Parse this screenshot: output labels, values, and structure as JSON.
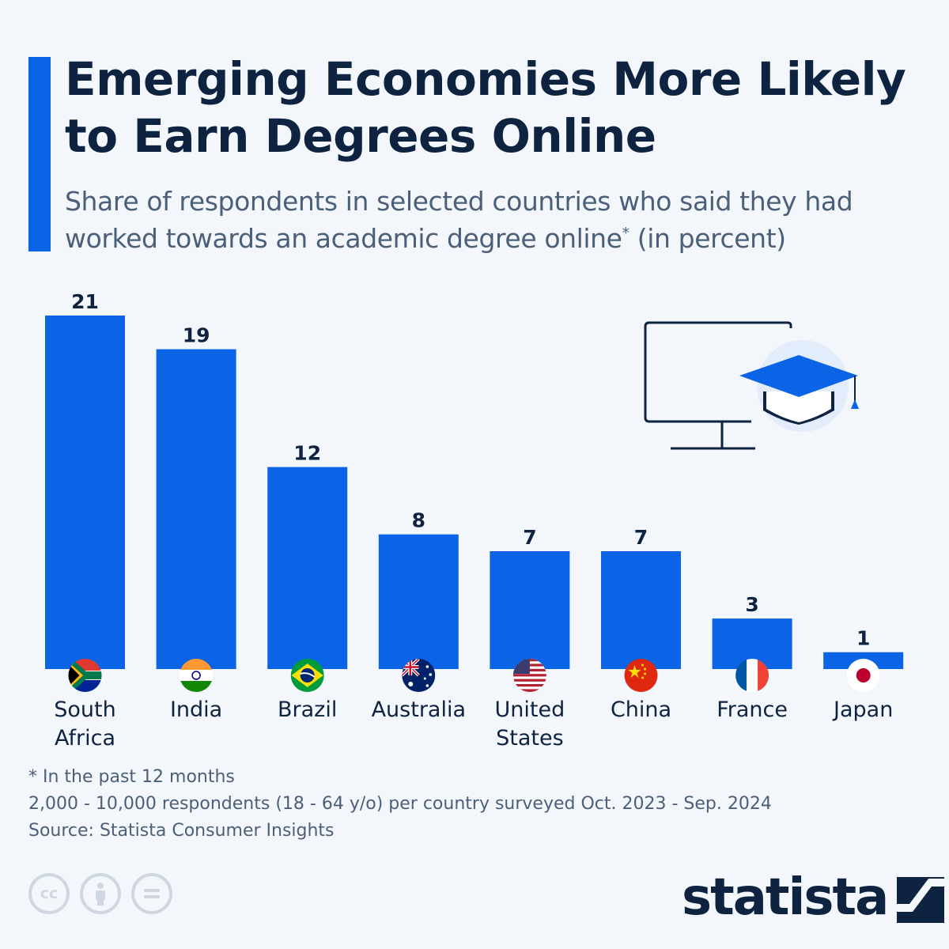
{
  "header": {
    "title": "Emerging Economies More Likely to Earn Degrees Online",
    "subtitle_text": "Share of respondents in selected countries who said they had worked towards an academic degree online",
    "subtitle_marker": "*",
    "subtitle_tail": " (in percent)"
  },
  "chart_data": {
    "type": "bar",
    "title": "Emerging Economies More Likely to Earn Degrees Online",
    "subtitle": "Share of respondents in selected countries who said they had worked towards an academic degree online* (in percent)",
    "categories": [
      "South Africa",
      "India",
      "Brazil",
      "Australia",
      "United States",
      "China",
      "France",
      "Japan"
    ],
    "category_lines": [
      [
        "South",
        "Africa"
      ],
      [
        "India"
      ],
      [
        "Brazil"
      ],
      [
        "Australia"
      ],
      [
        "United",
        "States"
      ],
      [
        "China"
      ],
      [
        "France"
      ],
      [
        "Japan"
      ]
    ],
    "values": [
      21,
      19,
      12,
      8,
      7,
      7,
      3,
      1
    ],
    "ylim": [
      0,
      21
    ],
    "grid": false,
    "data_labels": true,
    "bar_color": "#0b63e5"
  },
  "footnotes": {
    "asterisk_note": "* In the past 12 months",
    "sample_note": "2,000 - 10,000 respondents (18 - 64 y/o) per country surveyed Oct. 2023 - Sep. 2024",
    "source": "Source: Statista Consumer Insights"
  },
  "license_icons": [
    {
      "name": "creative-commons-icon",
      "glyph": "cc"
    },
    {
      "name": "attribution-icon",
      "glyph": "person"
    },
    {
      "name": "no-derivatives-icon",
      "glyph": "="
    }
  ],
  "brand": {
    "name": "statista"
  },
  "colors": {
    "accent": "#0b63e5",
    "title": "#0e2340",
    "subtitle": "#4b5f78",
    "background": "#f3f7fb"
  }
}
